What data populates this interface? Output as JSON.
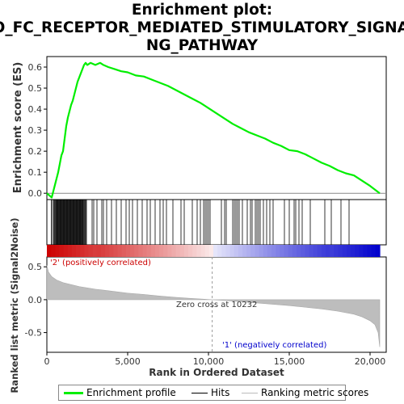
{
  "chart_data": {
    "type": "line",
    "title_lines": [
      "Enrichment plot:",
      "GO_FC_RECEPTOR_MEDIATED_STIMULATORY_SIGNALI",
      "NG_PATHWAY"
    ],
    "top_panel": {
      "ylabel": "Enrichment score (ES)",
      "ylim": [
        -0.03,
        0.65
      ],
      "yticks": [
        0.0,
        0.1,
        0.2,
        0.3,
        0.4,
        0.5,
        0.6
      ],
      "ytick_labels": [
        "0.0",
        "0.1",
        "0.2",
        "0.3",
        "0.4",
        "0.5",
        "0.6"
      ],
      "series": [
        {
          "name": "Enrichment profile",
          "color": "#00ee00",
          "x": [
            0,
            150,
            300,
            400,
            500,
            600,
            700,
            800,
            900,
            1000,
            1100,
            1200,
            1300,
            1400,
            1500,
            1600,
            1700,
            1800,
            1900,
            2000,
            2100,
            2200,
            2300,
            2400,
            2500,
            2700,
            3000,
            3300,
            3500,
            3800,
            4200,
            4600,
            5000,
            5500,
            6000,
            6500,
            7000,
            7500,
            8000,
            8500,
            9000,
            9500,
            10000,
            10500,
            11000,
            11500,
            12000,
            12500,
            13000,
            13500,
            14000,
            14500,
            15000,
            15500,
            16000,
            16500,
            17000,
            17500,
            18000,
            18500,
            19000,
            19500,
            20000,
            20600
          ],
          "y": [
            0.0,
            -0.01,
            -0.02,
            0.01,
            0.04,
            0.07,
            0.1,
            0.14,
            0.18,
            0.2,
            0.26,
            0.32,
            0.36,
            0.39,
            0.42,
            0.44,
            0.47,
            0.5,
            0.53,
            0.55,
            0.57,
            0.59,
            0.61,
            0.62,
            0.61,
            0.62,
            0.61,
            0.62,
            0.61,
            0.6,
            0.59,
            0.58,
            0.575,
            0.56,
            0.555,
            0.54,
            0.525,
            0.51,
            0.49,
            0.47,
            0.45,
            0.43,
            0.405,
            0.38,
            0.355,
            0.33,
            0.31,
            0.29,
            0.275,
            0.26,
            0.24,
            0.225,
            0.205,
            0.2,
            0.185,
            0.165,
            0.145,
            0.13,
            0.11,
            0.095,
            0.085,
            0.06,
            0.035,
            0.0
          ]
        }
      ],
      "hits_label": "Hits",
      "hit_positions": [
        280,
        350,
        420,
        470,
        520,
        570,
        610,
        650,
        690,
        730,
        770,
        810,
        850,
        890,
        930,
        970,
        1010,
        1050,
        1090,
        1130,
        1170,
        1210,
        1250,
        1290,
        1330,
        1370,
        1410,
        1450,
        1490,
        1530,
        1570,
        1610,
        1650,
        1690,
        1730,
        1770,
        1810,
        1850,
        1890,
        1930,
        1970,
        2010,
        2050,
        2090,
        2130,
        2170,
        2210,
        2250,
        2300,
        2350,
        2400,
        2450,
        2800,
        2900,
        3100,
        3400,
        3500,
        3700,
        4000,
        4300,
        4600,
        4900,
        5100,
        5300,
        5600,
        5900,
        6200,
        6400,
        6700,
        7000,
        7200,
        7400,
        7800,
        8300,
        8500,
        9000,
        9300,
        9500,
        9700,
        9800,
        9900,
        10000,
        10100,
        10800,
        11000,
        11100,
        11500,
        11600,
        11700,
        11800,
        11900,
        12100,
        12400,
        12600,
        12700,
        12900,
        13000,
        13100,
        13200,
        13400,
        13600,
        13800,
        14000,
        14700,
        15000,
        15300,
        15400,
        15600,
        15800,
        16300,
        17200,
        17600,
        18200,
        18700
      ]
    },
    "bottom_panel": {
      "ylabel": "Ranked list metric (Signal2Noise)",
      "ylim": [
        -0.8,
        0.65
      ],
      "yticks": [
        -0.5,
        0.0,
        0.5
      ],
      "ytick_labels": [
        "-0.5",
        "0.0",
        "0.5"
      ],
      "series_name": "Ranking metric scores",
      "metric_x": [
        0,
        100,
        300,
        600,
        1000,
        2000,
        3000,
        4000,
        5000,
        6000,
        7000,
        8000,
        9000,
        10000,
        10232,
        11000,
        12000,
        13000,
        14000,
        15000,
        16000,
        17000,
        18000,
        19000,
        19500,
        20000,
        20300,
        20500,
        20600
      ],
      "metric_y": [
        0.52,
        0.42,
        0.35,
        0.3,
        0.26,
        0.2,
        0.16,
        0.13,
        0.1,
        0.08,
        0.055,
        0.035,
        0.018,
        0.003,
        0.0,
        -0.012,
        -0.03,
        -0.05,
        -0.07,
        -0.09,
        -0.115,
        -0.14,
        -0.175,
        -0.22,
        -0.26,
        -0.32,
        -0.38,
        -0.5,
        -0.72
      ],
      "annotations": {
        "positive": "'2' (positively correlated)",
        "negative": "'1' (negatively correlated)",
        "zero_cross": "Zero cross at 10232"
      },
      "positive_color": "#cc0000",
      "negative_color": "#0000cc"
    },
    "xlabel": "Rank in Ordered Dataset",
    "xlim": [
      0,
      21000
    ],
    "xticks": [
      0,
      5000,
      10000,
      15000,
      20000
    ],
    "xtick_labels": [
      "0",
      "5,000",
      "10,000",
      "15,000",
      "20,000"
    ],
    "n_genes": 20600,
    "legend": {
      "items": [
        "Enrichment profile",
        "Hits",
        "Ranking metric scores"
      ],
      "placement": "bottom"
    }
  }
}
